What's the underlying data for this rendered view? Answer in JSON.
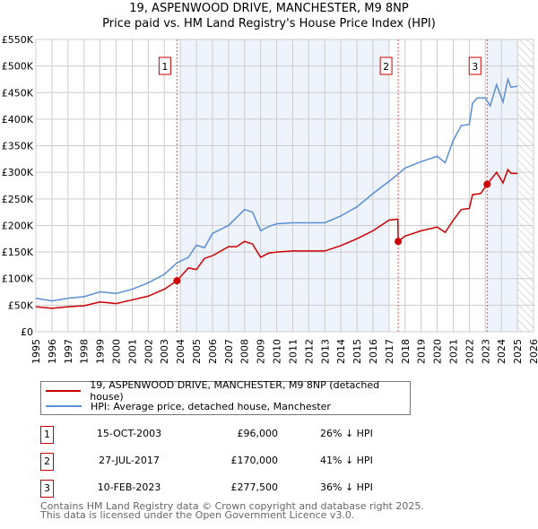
{
  "title": "19, ASPENWOOD DRIVE, MANCHESTER, M9 8NP",
  "subtitle": "Price paid vs. HM Land Registry's House Price Index (HPI)",
  "chart_data": {
    "type": "line",
    "title": "19, ASPENWOOD DRIVE, MANCHESTER, M9 8NP",
    "subtitle": "Price paid vs. HM Land Registry's House Price Index (HPI)",
    "xlim": [
      1995,
      2026
    ],
    "ylim": [
      0,
      550000
    ],
    "x_ticks": [
      "1995",
      "1996",
      "1997",
      "1998",
      "1999",
      "2000",
      "2001",
      "2002",
      "2003",
      "2004",
      "2005",
      "2006",
      "2007",
      "2008",
      "2009",
      "2010",
      "2011",
      "2012",
      "2013",
      "2014",
      "2015",
      "2016",
      "2017",
      "2018",
      "2019",
      "2020",
      "2021",
      "2022",
      "2023",
      "2024",
      "2025",
      "2026"
    ],
    "y_ticks": [
      "£0",
      "£50K",
      "£100K",
      "£150K",
      "£200K",
      "£250K",
      "£300K",
      "£350K",
      "£400K",
      "£450K",
      "£500K",
      "£550K"
    ],
    "grid": true,
    "series": [
      {
        "name": "19, ASPENWOOD DRIVE, MANCHESTER, M9 8NP (detached house)",
        "color": "#cc0000",
        "x": [
          1995,
          1996,
          1997,
          1998,
          1999,
          2000,
          2001,
          2002,
          2003,
          2003.79,
          2004.5,
          2005,
          2005.5,
          2006,
          2007,
          2007.5,
          2008,
          2008.5,
          2009,
          2009.5,
          2010,
          2011,
          2012,
          2013,
          2014,
          2015,
          2016,
          2017,
          2017.55,
          2017.57,
          2018,
          2019,
          2020,
          2020.5,
          2021,
          2021.5,
          2022,
          2022.2,
          2022.7,
          2023.11,
          2023.7,
          2024.1,
          2024.4,
          2024.6,
          2025
        ],
        "y": [
          47,
          44,
          47,
          49,
          56,
          53,
          60,
          67,
          80,
          96,
          120,
          117,
          138,
          143,
          160,
          160,
          170,
          165,
          140,
          148,
          150,
          152,
          152,
          152,
          162,
          175,
          190,
          210,
          212,
          170,
          180,
          190,
          197,
          187,
          210,
          230,
          232,
          258,
          260,
          277.5,
          300,
          280,
          305,
          298,
          298
        ]
      },
      {
        "name": "HPI: Average price, detached house, Manchester",
        "color": "#5b8fd4",
        "x": [
          1995,
          1996,
          1997,
          1998,
          1999,
          2000,
          2001,
          2002,
          2003,
          2003.8,
          2004.5,
          2005,
          2005.5,
          2006,
          2007,
          2007.5,
          2008,
          2008.5,
          2009,
          2009.5,
          2010,
          2011,
          2012,
          2013,
          2014,
          2015,
          2016,
          2017,
          2017.5,
          2018,
          2019,
          2020,
          2020.5,
          2021,
          2021.5,
          2022,
          2022.2,
          2022.5,
          2023,
          2023.3,
          2023.7,
          2024.1,
          2024.4,
          2024.6,
          2025
        ],
        "y": [
          63,
          58,
          63,
          66,
          75,
          72,
          80,
          92,
          108,
          130,
          140,
          163,
          158,
          185,
          200,
          215,
          230,
          225,
          190,
          198,
          203,
          205,
          205,
          205,
          218,
          235,
          260,
          283,
          295,
          308,
          320,
          330,
          318,
          360,
          388,
          390,
          430,
          440,
          440,
          425,
          465,
          432,
          475,
          460,
          462
        ]
      }
    ],
    "y_unit": "thousands GBP",
    "sales": [
      {
        "num": "1",
        "date": "15-OCT-2003",
        "price": "£96,000",
        "hpi": "26% ↓ HPI",
        "x": 2003.79,
        "y": 96
      },
      {
        "num": "2",
        "date": "27-JUL-2017",
        "price": "£170,000",
        "hpi": "41% ↓ HPI",
        "x": 2017.57,
        "y": 170
      },
      {
        "num": "3",
        "date": "10-FEB-2023",
        "price": "£277,500",
        "hpi": "36% ↓ HPI",
        "x": 2023.11,
        "y": 277.5
      }
    ],
    "shaded": [
      [
        2004.0,
        2017.0
      ],
      [
        2023.11,
        2025.0
      ]
    ],
    "hatched_from": 2025.0
  },
  "legend": {
    "red": "19, ASPENWOOD DRIVE, MANCHESTER, M9 8NP (detached house)",
    "blue": "HPI: Average price, detached house, Manchester"
  },
  "footer": [
    "Contains HM Land Registry data © Crown copyright and database right 2025.",
    "This data is licensed under the Open Government Licence v3.0."
  ]
}
